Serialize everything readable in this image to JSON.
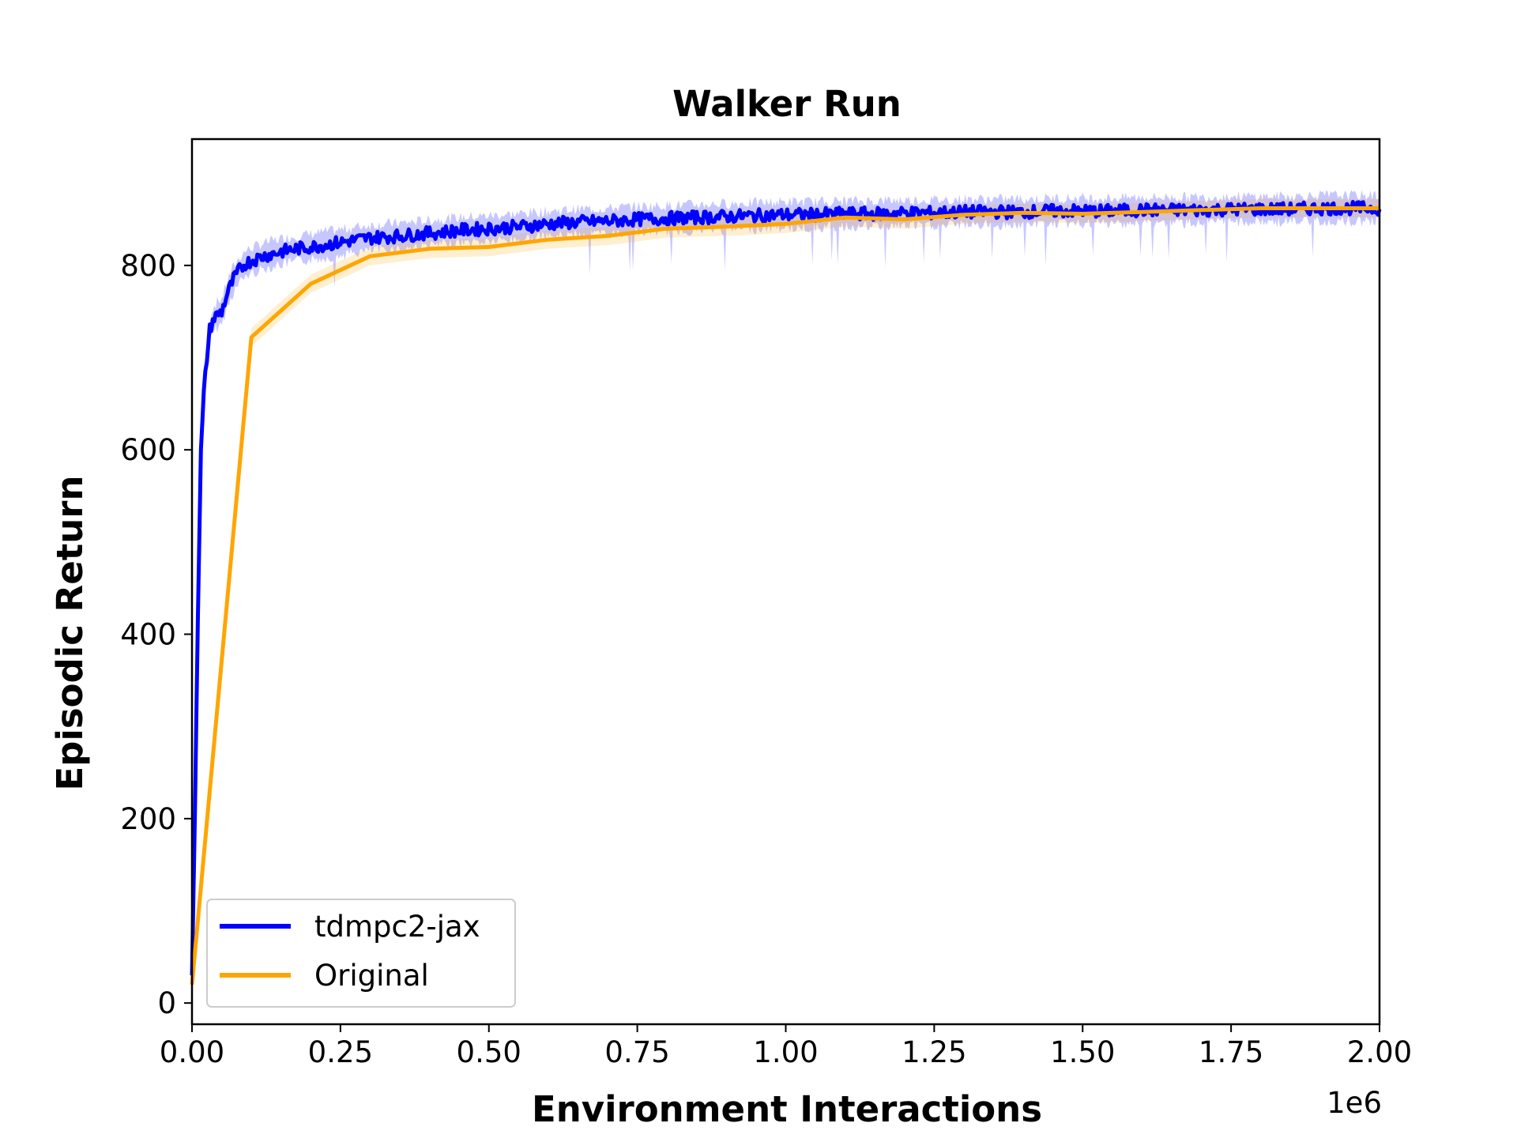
{
  "chart_data": {
    "type": "line",
    "title": "Walker Run",
    "xlabel": "Environment Interactions",
    "ylabel": "Episodic Return",
    "x_offset_label": "1e6",
    "xlim": [
      0,
      2000000
    ],
    "ylim": [
      -23,
      937
    ],
    "x_ticks": [
      0,
      250000,
      500000,
      750000,
      1000000,
      1250000,
      1500000,
      1750000,
      2000000
    ],
    "x_tick_labels": [
      "0.00",
      "0.25",
      "0.50",
      "0.75",
      "1.00",
      "1.25",
      "1.50",
      "1.75",
      "2.00"
    ],
    "y_ticks": [
      0,
      200,
      400,
      600,
      800
    ],
    "y_tick_labels": [
      "0",
      "200",
      "400",
      "600",
      "800"
    ],
    "grid": false,
    "legend_position": "lower-left",
    "series": [
      {
        "name": "tdmpc2-jax",
        "color": "#0000ff",
        "shaded_band": true,
        "x": [
          0,
          5000,
          10000,
          15000,
          20000,
          25000,
          30000,
          35000,
          40000,
          50000,
          60000,
          70000,
          80000,
          90000,
          100000,
          120000,
          150000,
          175000,
          200000,
          250000,
          300000,
          350000,
          400000,
          450000,
          500000,
          550000,
          600000,
          650000,
          700000,
          750000,
          800000,
          850000,
          900000,
          950000,
          1000000,
          1050000,
          1100000,
          1150000,
          1200000,
          1250000,
          1300000,
          1350000,
          1400000,
          1450000,
          1500000,
          1550000,
          1600000,
          1650000,
          1700000,
          1750000,
          1800000,
          1850000,
          1900000,
          1950000,
          2000000
        ],
        "y": [
          30,
          210,
          420,
          600,
          660,
          700,
          730,
          740,
          745,
          750,
          770,
          785,
          795,
          802,
          805,
          810,
          815,
          818,
          820,
          825,
          830,
          832,
          835,
          838,
          840,
          842,
          845,
          847,
          848,
          850,
          851,
          852,
          853,
          854,
          855,
          855,
          856,
          856,
          857,
          857,
          858,
          858,
          858,
          859,
          859,
          859,
          860,
          860,
          860,
          861,
          861,
          861,
          862,
          862,
          862
        ]
      },
      {
        "name": "Original",
        "color": "#ffa500",
        "shaded_band": true,
        "x": [
          0,
          100000,
          200000,
          300000,
          400000,
          500000,
          600000,
          700000,
          800000,
          900000,
          1000000,
          1100000,
          1200000,
          1300000,
          1400000,
          1500000,
          1600000,
          1700000,
          1800000,
          1900000,
          2000000
        ],
        "y": [
          20,
          722,
          780,
          810,
          818,
          820,
          828,
          832,
          840,
          842,
          845,
          852,
          850,
          855,
          857,
          856,
          858,
          860,
          862,
          862,
          862
        ]
      }
    ]
  }
}
